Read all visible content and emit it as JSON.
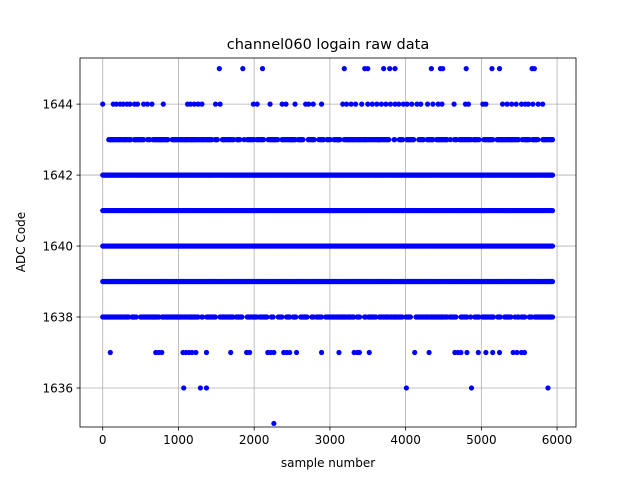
{
  "chart_data": {
    "type": "scatter",
    "title": "channel060 logain raw data",
    "xlabel": "sample number",
    "ylabel": "ADC Code",
    "xlim": [
      -300,
      6250
    ],
    "ylim": [
      1634.9,
      1645.3
    ],
    "xticks": [
      0,
      1000,
      2000,
      3000,
      4000,
      5000,
      6000
    ],
    "yticks": [
      1636,
      1638,
      1640,
      1642,
      1644
    ],
    "grid": true,
    "legend": "none",
    "marker_color": "#0000ff",
    "series": [
      {
        "points_by_code": [
          {
            "y": 1635,
            "x": [
              2260
            ]
          },
          {
            "y": 1636,
            "x": [
              1070,
              1290,
              1370,
              4010,
              4870,
              5880
            ]
          },
          {
            "y": 1637,
            "x": [
              100,
              700,
              740,
              780,
              1060,
              1100,
              1140,
              1180,
              1230,
              1370,
              1690,
              1900,
              1940,
              2180,
              2220,
              2260,
              2390,
              2430,
              2470,
              2560,
              2890,
              3120,
              3320,
              3360,
              3390,
              3520,
              4120,
              4310,
              4650,
              4690,
              4730,
              4810,
              4960,
              5060,
              5150,
              5240,
              5420,
              5470,
              5530,
              5570
            ]
          },
          {
            "y": 1644,
            "x": [
              0,
              140,
              180,
              230,
              270,
              320,
              360,
              420,
              460,
              540,
              590,
              650,
              800,
              1120,
              1160,
              1210,
              1260,
              1310,
              1490,
              1550,
              1990,
              2040,
              2210,
              2370,
              2420,
              2540,
              2680,
              2720,
              2780,
              2890,
              3170,
              3220,
              3280,
              3340,
              3420,
              3500,
              3560,
              3620,
              3680,
              3740,
              3800,
              3860,
              3910,
              3970,
              4020,
              4080,
              4150,
              4200,
              4290,
              4360,
              4430,
              4480,
              4640,
              4790,
              4830,
              5020,
              5060,
              5280,
              5340,
              5400,
              5460,
              5530,
              5580,
              5620,
              5680,
              5750,
              5810
            ]
          },
          {
            "y": 1645,
            "x": [
              1540,
              1850,
              2110,
              3190,
              3460,
              3500,
              3710,
              3790,
              3860,
              4340,
              4460,
              4490,
              4800,
              5140,
              5240,
              5670,
              5700
            ]
          },
          {
            "y": 1638,
            "band": "dense_gaps",
            "x_start": 0,
            "x_end": 5940
          },
          {
            "y": 1639,
            "band": "dense",
            "x_start": 0,
            "x_end": 5940
          },
          {
            "y": 1640,
            "band": "dense",
            "x_start": 0,
            "x_end": 5940
          },
          {
            "y": 1641,
            "band": "dense",
            "x_start": 0,
            "x_end": 5940
          },
          {
            "y": 1642,
            "band": "dense",
            "x_start": 0,
            "x_end": 5940
          },
          {
            "y": 1643,
            "band": "dense_gaps",
            "x_start": 80,
            "x_end": 5940
          }
        ]
      }
    ]
  }
}
